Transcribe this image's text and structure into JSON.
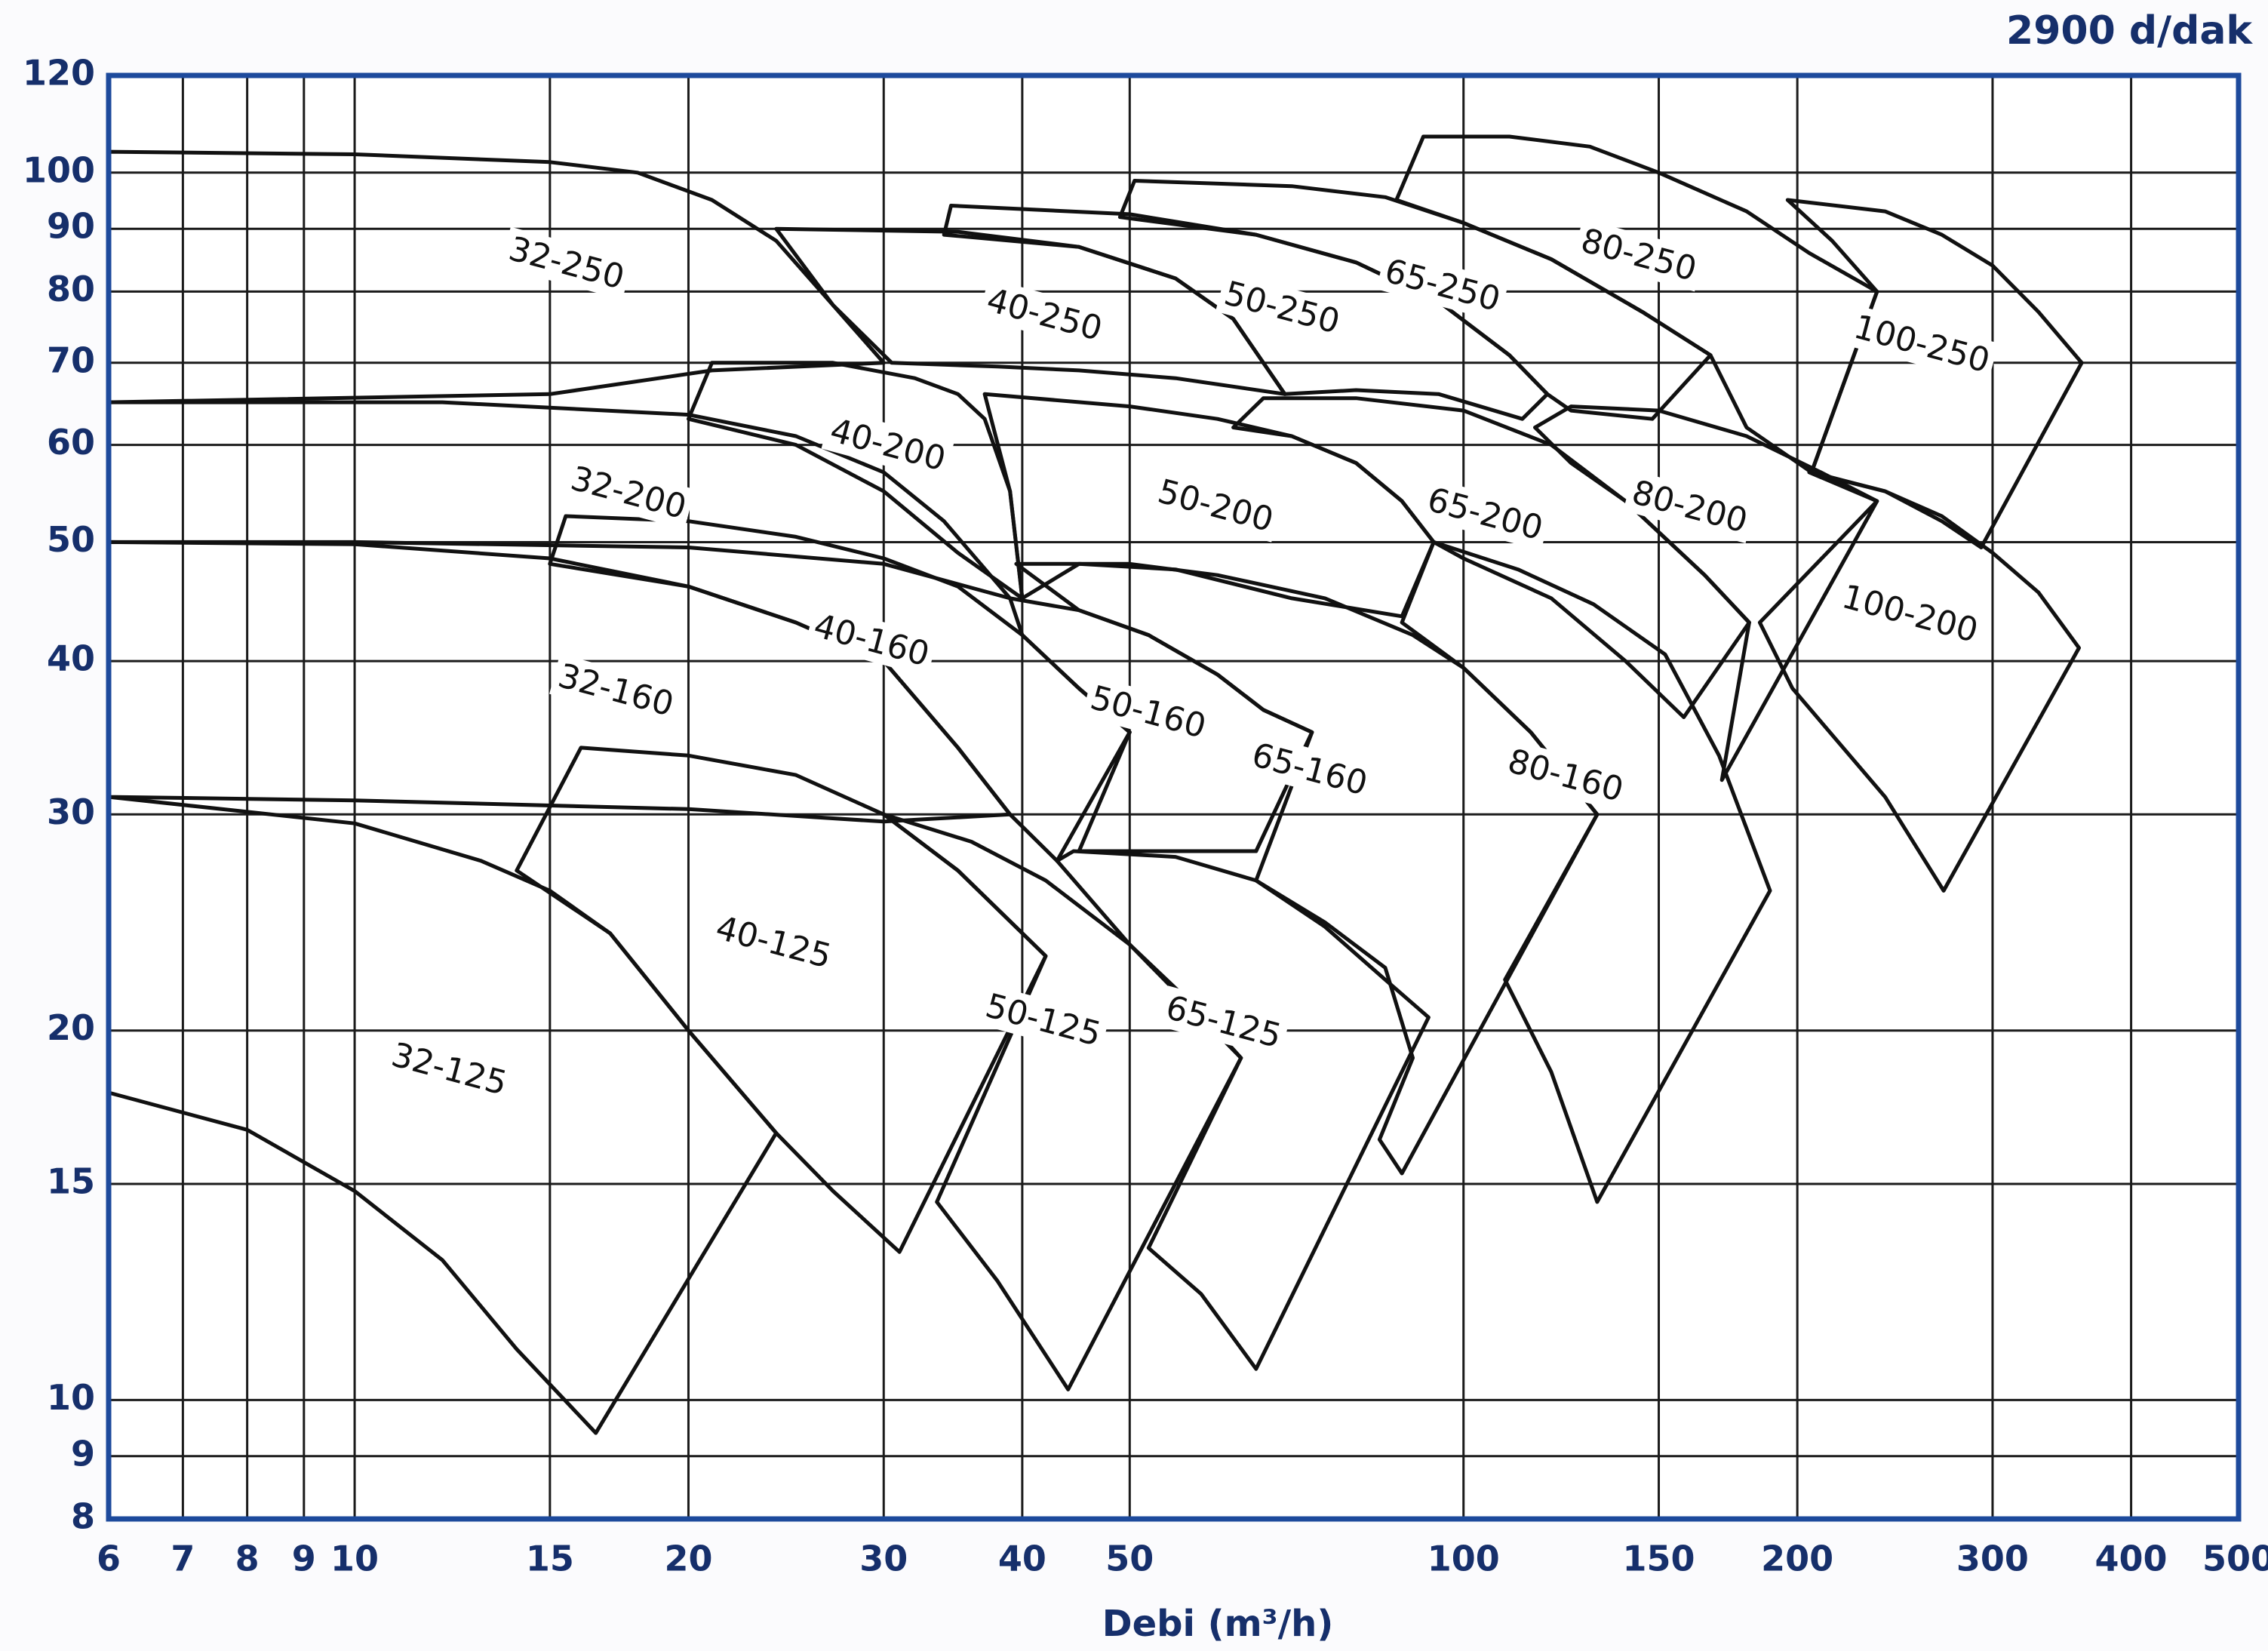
{
  "chart_data": {
    "type": "region",
    "title": "2900 d/dak",
    "x_label": "Debi (m³/h)",
    "xscale": "log",
    "yscale": "log",
    "xlim": [
      6,
      500
    ],
    "ylim": [
      8,
      120
    ],
    "xticks": [
      6,
      7,
      8,
      9,
      10,
      15,
      20,
      30,
      40,
      50,
      100,
      150,
      200,
      300,
      400,
      500
    ],
    "yticks": [
      8,
      9,
      10,
      15,
      20,
      30,
      40,
      50,
      60,
      70,
      80,
      90,
      100,
      120
    ],
    "grid": true,
    "color": "#111111",
    "series": [
      {
        "name": "32-125",
        "x": [
          6,
          10,
          13,
          15,
          17,
          20,
          24,
          16.5,
          14,
          12,
          10,
          8,
          6
        ],
        "values": [
          31,
          29.5,
          27.5,
          26,
          24,
          20,
          16.5,
          9.4,
          11,
          13,
          14.8,
          16.6,
          17.8
        ]
      },
      {
        "name": "32-160",
        "x": [
          6,
          10,
          15,
          20,
          25,
          30,
          35,
          39,
          30,
          20,
          10,
          6
        ],
        "values": [
          50,
          49.8,
          48.5,
          46,
          43,
          40,
          34,
          30,
          29.6,
          30.3,
          30.8,
          31
        ]
      },
      {
        "name": "32-200",
        "x": [
          6,
          12,
          20,
          25,
          30,
          34,
          39,
          30,
          20,
          10,
          6
        ],
        "values": [
          65,
          65,
          63.5,
          61,
          57,
          52,
          45,
          48,
          49.5,
          50,
          50
        ]
      },
      {
        "name": "32-250",
        "x": [
          6,
          10,
          15,
          18,
          21,
          24,
          27,
          30,
          21,
          15,
          6
        ],
        "values": [
          104,
          103.5,
          102,
          100,
          95,
          88,
          78,
          70,
          69,
          66,
          65
        ]
      },
      {
        "name": "40-125",
        "x": [
          14,
          16,
          20,
          25,
          30,
          35,
          42,
          31,
          27,
          24,
          20,
          17
        ],
        "values": [
          27,
          34,
          33.5,
          32.3,
          30,
          27,
          23,
          13.2,
          14.8,
          16.5,
          20,
          24
        ]
      },
      {
        "name": "40-160",
        "x": [
          15,
          15.5,
          20,
          25,
          30,
          35,
          40,
          45,
          50,
          43,
          39,
          35,
          30,
          25,
          20
        ],
        "values": [
          48,
          52.5,
          52,
          50.5,
          48.5,
          46,
          42,
          38,
          35,
          27.5,
          30,
          34,
          40,
          43,
          46
        ]
      },
      {
        "name": "40-200",
        "x": [
          20,
          21,
          27,
          32,
          35,
          37,
          39,
          40,
          35,
          30,
          25
        ],
        "values": [
          63,
          70,
          70,
          68,
          66,
          63,
          55,
          45,
          49,
          55,
          60
        ]
      },
      {
        "name": "40-250",
        "x": [
          24,
          35,
          45,
          55,
          62,
          69,
          55,
          45,
          38,
          30.5,
          27
        ],
        "values": [
          90,
          89.5,
          87,
          82,
          76,
          66,
          68,
          69,
          69.5,
          70,
          78
        ]
      },
      {
        "name": "50-125",
        "x": [
          30,
          36,
          42,
          50,
          57,
          63,
          44,
          38,
          33.5,
          42,
          35
        ],
        "values": [
          30,
          28.5,
          26.5,
          23.5,
          21,
          19,
          10.2,
          12.5,
          14.5,
          23,
          27
        ]
      },
      {
        "name": "50-160",
        "x": [
          39,
          45,
          52,
          60,
          66,
          73,
          65,
          55,
          45,
          50,
          45,
          40
        ],
        "values": [
          45,
          44,
          42,
          39,
          36.5,
          35,
          28,
          28,
          28,
          35,
          38,
          42
        ]
      },
      {
        "name": "50-200",
        "x": [
          37,
          50,
          60,
          70,
          80,
          88,
          94,
          88,
          70,
          55,
          45,
          40,
          39
        ],
        "values": [
          66,
          64.5,
          63,
          61,
          58,
          54,
          50,
          43.5,
          45,
          47.5,
          48,
          45,
          55
        ]
      },
      {
        "name": "50-250",
        "x": [
          34,
          34.5,
          50,
          65,
          80,
          95,
          110,
          119,
          113,
          95,
          80,
          69,
          62,
          55,
          45
        ],
        "values": [
          89,
          94,
          92.5,
          89,
          84.5,
          78.5,
          71,
          66,
          63,
          66,
          66.5,
          66,
          76,
          82,
          87
        ]
      },
      {
        "name": "65-125",
        "x": [
          43,
          44.5,
          55,
          65,
          75,
          85,
          93,
          65,
          58,
          52,
          63,
          50
        ],
        "values": [
          27.5,
          28,
          27.7,
          26.5,
          24.3,
          22,
          20.5,
          10.6,
          12.2,
          13.3,
          19,
          23.5
        ]
      },
      {
        "name": "65-160",
        "x": [
          39.5,
          50,
          60,
          75,
          90,
          100,
          115,
          132,
          88,
          84,
          90,
          85,
          75,
          65,
          73,
          66,
          60,
          52,
          45
        ],
        "values": [
          48,
          48,
          47,
          45,
          42,
          39.5,
          35,
          30,
          15.3,
          16.3,
          19,
          22.5,
          24.5,
          26.5,
          35,
          36.5,
          39,
          42,
          44
        ]
      },
      {
        "name": "65-200",
        "x": [
          62,
          66,
          80,
          100,
          120,
          140,
          165,
          181,
          158,
          140,
          120,
          100,
          94,
          88,
          80,
          70
        ],
        "values": [
          62,
          65.5,
          65.5,
          64,
          60,
          54,
          47,
          43,
          36,
          40,
          45,
          48.5,
          50,
          54,
          58,
          61
        ]
      },
      {
        "name": "65-250",
        "x": [
          49,
          50.5,
          70,
          85,
          100,
          120,
          145,
          167,
          148,
          125,
          119,
          110,
          95,
          80,
          65
        ],
        "values": [
          92,
          98.5,
          97.5,
          95.5,
          91,
          85,
          77,
          71,
          63,
          64,
          66,
          71,
          78.5,
          84.5,
          89
        ]
      },
      {
        "name": "80-160",
        "x": [
          94,
          112,
          131,
          152,
          170,
          189,
          132,
          120,
          109,
          132,
          115,
          100,
          88
        ],
        "values": [
          50,
          47.5,
          44.5,
          40.5,
          33.5,
          26,
          14.5,
          18.5,
          22,
          30,
          35,
          39.5,
          43
        ]
      },
      {
        "name": "80-200",
        "x": [
          116,
          125,
          150,
          180,
          210,
          236,
          171,
          181,
          165,
          140,
          125
        ],
        "values": [
          62,
          64.5,
          64,
          61,
          57,
          54,
          32,
          43,
          47,
          54,
          58
        ]
      },
      {
        "name": "80-250",
        "x": [
          87,
          92,
          110,
          130,
          150,
          180,
          205,
          236,
          206,
          180,
          167,
          145,
          120,
          100
        ],
        "values": [
          95,
          107,
          107,
          105,
          100,
          93,
          86,
          80,
          57,
          62,
          71,
          77,
          85,
          91
        ]
      },
      {
        "name": "100-200",
        "x": [
          205,
          240,
          270,
          300,
          330,
          359,
          271,
          240,
          198,
          185,
          236
        ],
        "values": [
          57,
          55,
          52.5,
          49,
          45.5,
          41,
          26,
          31,
          38,
          43,
          54
        ]
      },
      {
        "name": "100-250",
        "x": [
          196,
          240,
          270,
          300,
          330,
          361,
          293,
          270,
          240,
          206,
          236,
          215
        ],
        "values": [
          95,
          93,
          89,
          84,
          77,
          70,
          49.5,
          52,
          55,
          57,
          80,
          88
        ]
      }
    ]
  }
}
